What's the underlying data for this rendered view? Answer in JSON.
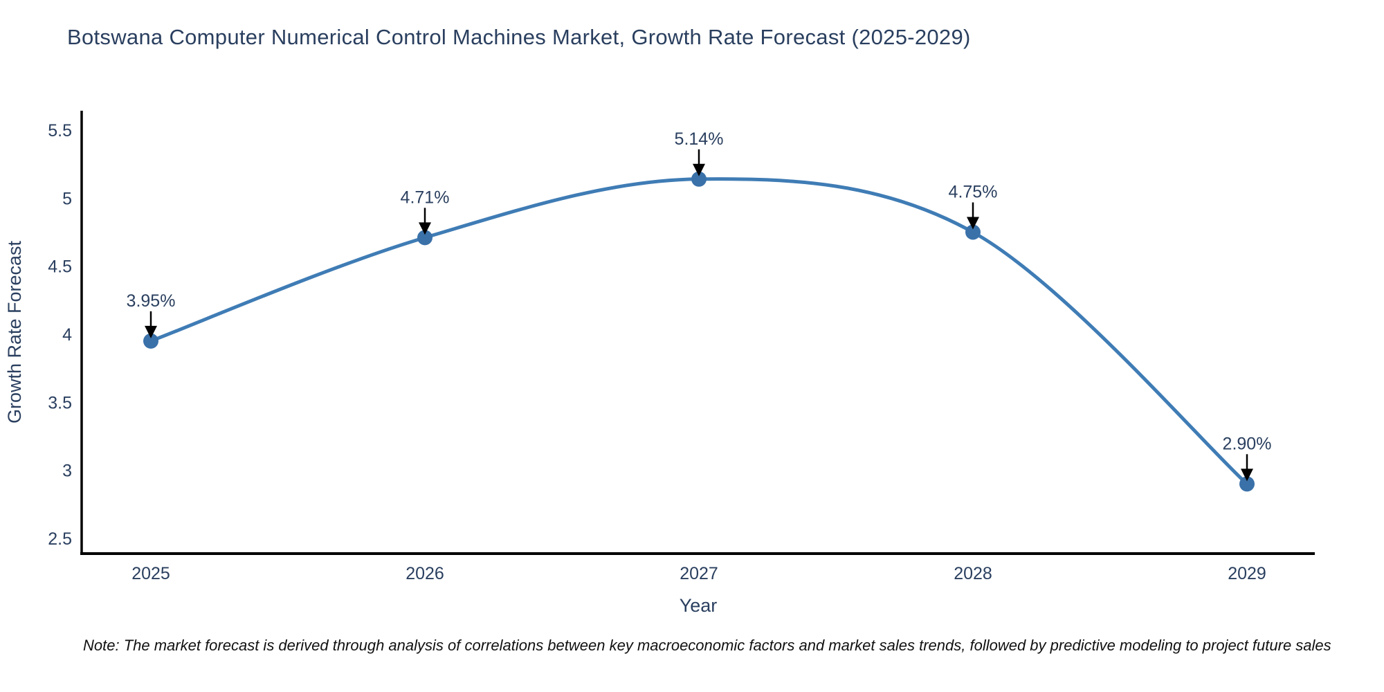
{
  "title": "Botswana Computer Numerical Control Machines Market, Growth Rate Forecast (2025-2029)",
  "note": "Note: The market forecast is derived through analysis of correlations between key macroeconomic factors and market sales trends, followed by predictive modeling to project future sales",
  "chart_data": {
    "type": "line",
    "line_shape": "spline",
    "categories": [
      "2025",
      "2026",
      "2027",
      "2028",
      "2029"
    ],
    "values": [
      3.95,
      4.71,
      5.14,
      4.75,
      2.9
    ],
    "point_labels": [
      "3.95%",
      "4.71%",
      "5.14%",
      "4.75%",
      "2.90%"
    ],
    "title": "Botswana Computer Numerical Control Machines Market, Growth Rate Forecast (2025-2029)",
    "xlabel": "Year",
    "ylabel": "Growth Rate Forecast",
    "ylim": [
      2.5,
      5.5
    ],
    "yticks": [
      2.5,
      3,
      3.5,
      4,
      4.5,
      5,
      5.5
    ],
    "grid": false,
    "legend": false,
    "colors": {
      "line": "#3f7cb5",
      "marker": "#3a71a9",
      "arrow": "#000000",
      "text": "#2a3f5f",
      "axis": "#000000",
      "note_text": "#111111"
    }
  }
}
